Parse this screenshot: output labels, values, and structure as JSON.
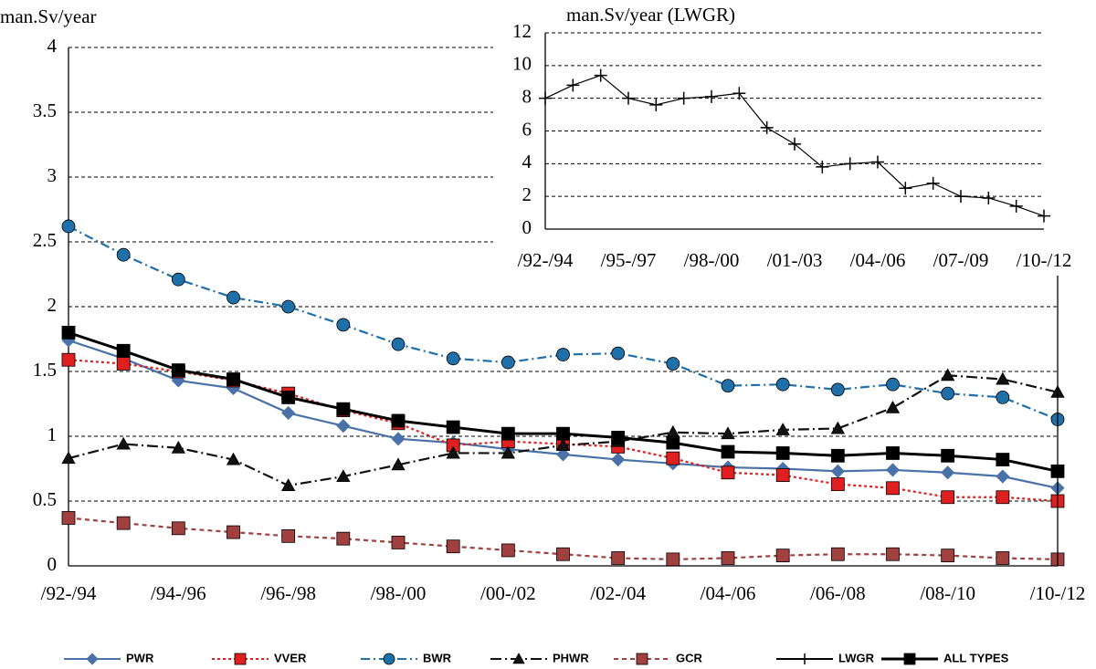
{
  "chart_data": [
    {
      "type": "line",
      "y_label": "man.Sv/year",
      "categories": [
        "/92-/94",
        null,
        "/94-/96",
        null,
        "/96-/98",
        null,
        "/98-/00",
        null,
        "/00-/02",
        null,
        "/02-/04",
        null,
        "/04-/06",
        null,
        "/06-/08",
        null,
        "/08-/10",
        null,
        "/10-/12"
      ],
      "ylim": [
        0,
        4
      ],
      "yticks": [
        0,
        0.5,
        1,
        1.5,
        2,
        2.5,
        3,
        3.5,
        4
      ],
      "grid": true,
      "legend": "bottom",
      "series": [
        {
          "name": "PWR",
          "color": "#4a72a8",
          "marker": "diamond",
          "dash": "",
          "values": [
            1.74,
            1.6,
            1.43,
            1.37,
            1.18,
            1.08,
            0.98,
            0.95,
            0.9,
            0.86,
            0.82,
            0.79,
            0.76,
            0.75,
            0.73,
            0.74,
            0.72,
            0.69,
            0.6
          ]
        },
        {
          "name": "VVER",
          "color": "#e02020",
          "marker": "square",
          "dash": "3 3",
          "values": [
            1.59,
            1.56,
            1.5,
            1.43,
            1.33,
            1.2,
            1.1,
            0.93,
            0.96,
            0.94,
            0.92,
            0.83,
            0.72,
            0.7,
            0.63,
            0.6,
            0.53,
            0.53,
            0.5
          ]
        },
        {
          "name": "BWR",
          "color": "#1f6fa8",
          "marker": "circle",
          "dash": "10 4 2 4",
          "values": [
            2.62,
            2.4,
            2.21,
            2.07,
            2.0,
            1.86,
            1.71,
            1.6,
            1.57,
            1.63,
            1.64,
            1.56,
            1.39,
            1.4,
            1.36,
            1.4,
            1.33,
            1.3,
            1.13
          ]
        },
        {
          "name": "PHWR",
          "color": "#111111",
          "marker": "triangle",
          "dash": "12 4 2 4",
          "values": [
            0.83,
            0.94,
            0.91,
            0.82,
            0.62,
            0.69,
            0.78,
            0.87,
            0.87,
            0.93,
            0.96,
            1.03,
            1.02,
            1.05,
            1.06,
            1.22,
            1.47,
            1.44,
            1.34
          ]
        },
        {
          "name": "GCR",
          "color": "#a0403f",
          "marker": "square",
          "dash": "5 4",
          "values": [
            0.37,
            0.33,
            0.29,
            0.26,
            0.23,
            0.21,
            0.18,
            0.15,
            0.12,
            0.09,
            0.06,
            0.05,
            0.06,
            0.08,
            0.09,
            0.09,
            0.08,
            0.06,
            0.05
          ]
        },
        {
          "name": "ALL TYPES",
          "color": "#000000",
          "marker": "square",
          "dash": "",
          "values": [
            1.8,
            1.66,
            1.51,
            1.44,
            1.3,
            1.21,
            1.12,
            1.07,
            1.02,
            1.02,
            0.99,
            0.95,
            0.88,
            0.87,
            0.85,
            0.87,
            0.85,
            0.82,
            0.73
          ]
        }
      ]
    },
    {
      "type": "line",
      "title": "man.Sv/year (LWGR)",
      "categories": [
        "/92-/94",
        null,
        null,
        "/95-/97",
        null,
        null,
        "/98-/00",
        null,
        null,
        "/01-/03",
        null,
        null,
        "/04-/06",
        null,
        null,
        "/07-/09",
        null,
        null,
        "/10-/12"
      ],
      "ylim": [
        0,
        12
      ],
      "yticks": [
        0,
        2,
        4,
        6,
        8,
        10,
        12
      ],
      "grid": true,
      "series": [
        {
          "name": "LWGR",
          "color": "#000000",
          "marker": "plus",
          "dash": "",
          "values": [
            8,
            8.8,
            9.4,
            8,
            7.6,
            8,
            8.1,
            8.3,
            6.2,
            5.2,
            3.8,
            4,
            4.1,
            2.5,
            2.8,
            2.0,
            1.9,
            1.4,
            0.8
          ]
        }
      ]
    }
  ]
}
